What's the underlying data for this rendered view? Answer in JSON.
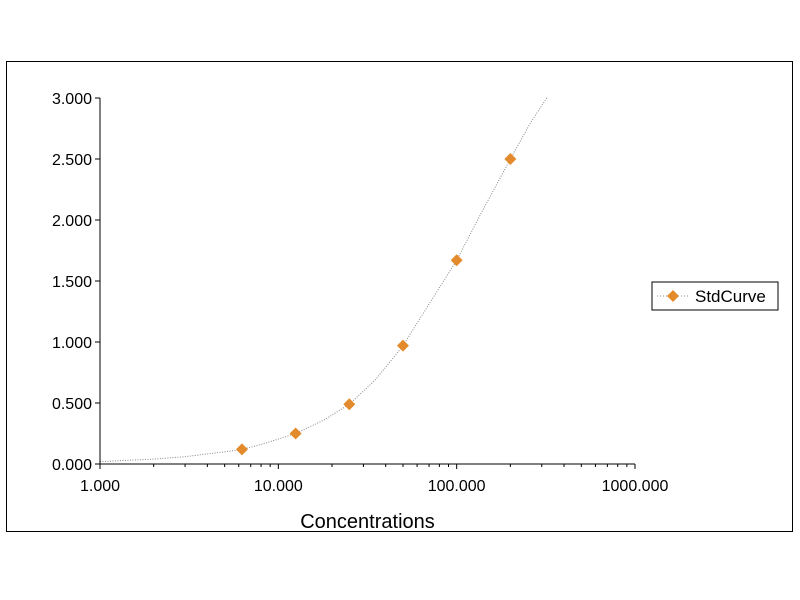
{
  "chart_data": {
    "type": "scatter",
    "title": "",
    "xlabel": "Concentrations",
    "ylabel": "",
    "x_scale": "log",
    "xlim": [
      1,
      1000
    ],
    "ylim": [
      0,
      3
    ],
    "x_ticks": [
      1,
      10,
      100,
      1000
    ],
    "x_tick_labels": [
      "1.000",
      "10.000",
      "100.000",
      "1000.000"
    ],
    "y_ticks": [
      0,
      0.5,
      1,
      1.5,
      2,
      2.5,
      3
    ],
    "y_tick_labels": [
      "0.000",
      "0.500",
      "1.000",
      "1.500",
      "2.000",
      "2.500",
      "3.000"
    ],
    "grid": false,
    "legend_position": "right",
    "series": [
      {
        "name": "StdCurve",
        "marker": "diamond",
        "color": "#E38B2C",
        "line_color": "#888888",
        "line_style": "dotted",
        "x": [
          6.25,
          12.5,
          25,
          50,
          100,
          200
        ],
        "y": [
          0.12,
          0.25,
          0.49,
          0.97,
          1.67,
          2.5
        ]
      }
    ],
    "fit_curve": {
      "x": [
        1.0,
        2.0,
        3.0,
        5.0,
        6.25,
        8.0,
        12.5,
        18.0,
        25,
        35,
        50,
        70,
        100,
        140,
        200,
        260,
        320
      ],
      "y": [
        0.02,
        0.04,
        0.06,
        0.1,
        0.12,
        0.16,
        0.25,
        0.36,
        0.49,
        0.69,
        0.97,
        1.31,
        1.67,
        2.08,
        2.5,
        2.8,
        3.0
      ]
    }
  }
}
